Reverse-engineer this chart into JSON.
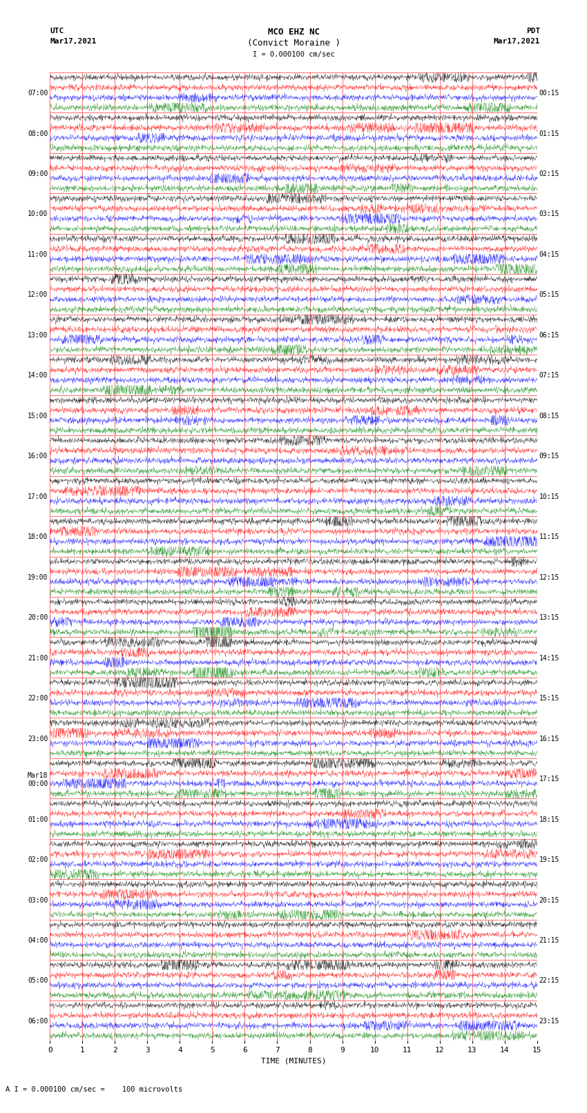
{
  "title_line1": "MCO EHZ NC",
  "title_line2": "(Convict Moraine )",
  "scale_label": "I = 0.000100 cm/sec",
  "bottom_label": "A I = 0.000100 cm/sec =    100 microvolts",
  "left_header": "UTC\nMar17,2021",
  "right_header": "PDT\nMar17,2021",
  "xlabel": "TIME (MINUTES)",
  "utc_labels": [
    "07:00",
    "08:00",
    "09:00",
    "10:00",
    "11:00",
    "12:00",
    "13:00",
    "14:00",
    "15:00",
    "16:00",
    "17:00",
    "18:00",
    "19:00",
    "20:00",
    "21:00",
    "22:00",
    "23:00",
    "Mar18\n00:00",
    "01:00",
    "02:00",
    "03:00",
    "04:00",
    "05:00",
    "06:00"
  ],
  "pdt_labels": [
    "00:15",
    "01:15",
    "02:15",
    "03:15",
    "04:15",
    "05:15",
    "06:15",
    "07:15",
    "08:15",
    "09:15",
    "10:15",
    "11:15",
    "12:15",
    "13:15",
    "14:15",
    "15:15",
    "16:15",
    "17:15",
    "18:15",
    "19:15",
    "20:15",
    "21:15",
    "22:15",
    "23:15"
  ],
  "colors": [
    "black",
    "red",
    "blue",
    "green"
  ],
  "bg_color": "#ffffff",
  "grid_color": "#ff0000",
  "num_rows": 24,
  "traces_per_row": 4,
  "noise_seed": 42,
  "xmin": 0,
  "xmax": 15,
  "figwidth": 8.5,
  "figheight": 16.13
}
